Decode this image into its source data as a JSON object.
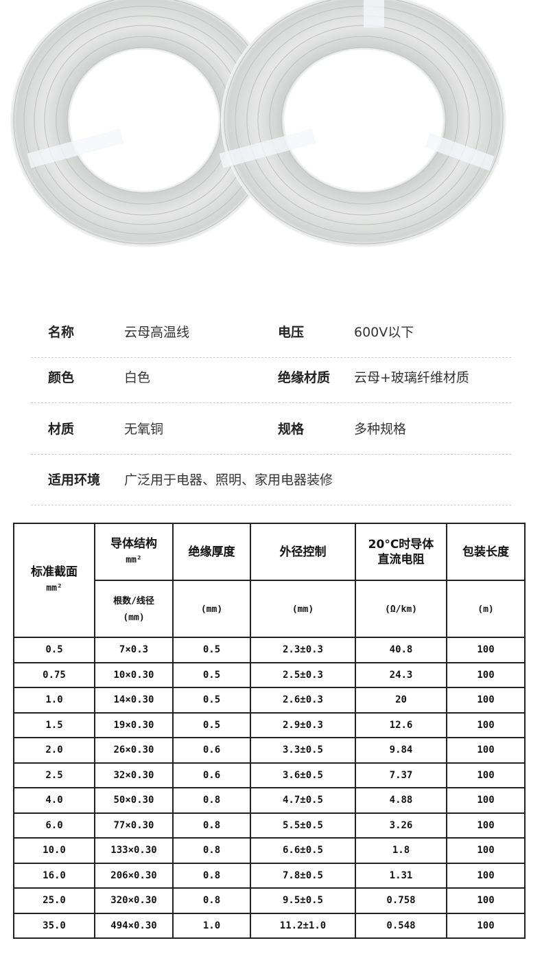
{
  "specs": [
    {
      "label": "名称",
      "value": "云母高温线",
      "label2": "电压",
      "value2": "600V以下"
    },
    {
      "label": "颜色",
      "value": "白色",
      "label2": "绝缘材质",
      "value2": "云母+玻璃纤维材质"
    },
    {
      "label": "材质",
      "value": "无氧铜",
      "label2": "规格",
      "value2": "多种规格"
    },
    {
      "label": "适用环境",
      "value": "广泛用于电器、照明、家用电器装修"
    }
  ],
  "table": {
    "headers": {
      "c0": "标准截面",
      "c0u": "mm²",
      "c1": "导体结构",
      "c1u": "mm²",
      "c1b": "根数/线径",
      "c1bu": "(mm)",
      "c2": "绝缘厚度",
      "c2u": "(mm)",
      "c3": "外径控制",
      "c3u": "(mm)",
      "c4": "20°C时导体直流电阻",
      "c4u": "(Ω/km)",
      "c5": "包装长度",
      "c5u": "(m)"
    },
    "rows": [
      [
        "0.5",
        "7×0.3",
        "0.5",
        "2.3±0.3",
        "40.8",
        "100"
      ],
      [
        "0.75",
        "10×0.30",
        "0.5",
        "2.5±0.3",
        "24.3",
        "100"
      ],
      [
        "1.0",
        "14×0.30",
        "0.5",
        "2.6±0.3",
        "20",
        "100"
      ],
      [
        "1.5",
        "19×0.30",
        "0.5",
        "2.9±0.3",
        "12.6",
        "100"
      ],
      [
        "2.0",
        "26×0.30",
        "0.6",
        "3.3±0.5",
        "9.84",
        "100"
      ],
      [
        "2.5",
        "32×0.30",
        "0.6",
        "3.6±0.5",
        "7.37",
        "100"
      ],
      [
        "4.0",
        "50×0.30",
        "0.8",
        "4.7±0.5",
        "4.88",
        "100"
      ],
      [
        "6.0",
        "77×0.30",
        "0.8",
        "5.5±0.5",
        "3.26",
        "100"
      ],
      [
        "10.0",
        "133×0.30",
        "0.8",
        "6.6±0.5",
        "1.8",
        "100"
      ],
      [
        "16.0",
        "206×0.30",
        "0.8",
        "7.8±0.5",
        "1.31",
        "100"
      ],
      [
        "25.0",
        "320×0.30",
        "0.8",
        "9.5±0.5",
        "0.758",
        "100"
      ],
      [
        "35.0",
        "494×0.30",
        "1.0",
        "11.2±1.0",
        "0.548",
        "100"
      ]
    ]
  }
}
